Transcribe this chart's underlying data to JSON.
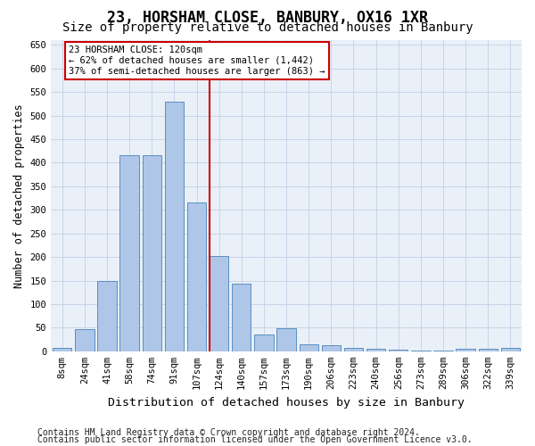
{
  "title": "23, HORSHAM CLOSE, BANBURY, OX16 1XR",
  "subtitle": "Size of property relative to detached houses in Banbury",
  "xlabel": "Distribution of detached houses by size in Banbury",
  "ylabel": "Number of detached properties",
  "footnote1": "Contains HM Land Registry data © Crown copyright and database right 2024.",
  "footnote2": "Contains public sector information licensed under the Open Government Licence v3.0.",
  "bar_labels": [
    "8sqm",
    "24sqm",
    "41sqm",
    "58sqm",
    "74sqm",
    "91sqm",
    "107sqm",
    "124sqm",
    "140sqm",
    "157sqm",
    "173sqm",
    "190sqm",
    "206sqm",
    "223sqm",
    "240sqm",
    "256sqm",
    "273sqm",
    "289sqm",
    "306sqm",
    "322sqm",
    "339sqm"
  ],
  "bar_values": [
    8,
    46,
    150,
    415,
    416,
    530,
    315,
    203,
    144,
    35,
    48,
    15,
    13,
    8,
    5,
    4,
    2,
    1,
    6,
    6,
    8
  ],
  "bar_color": "#aec6e8",
  "bar_edge_color": "#5a8fc2",
  "annotation_text1": "23 HORSHAM CLOSE: 120sqm",
  "annotation_text2": "← 62% of detached houses are smaller (1,442)",
  "annotation_text3": "37% of semi-detached houses are larger (863) →",
  "annotation_box_color": "#ffffff",
  "annotation_box_edge": "#cc0000",
  "line_color": "#cc0000",
  "line_bar_index": 7,
  "ylim": [
    0,
    660
  ],
  "yticks": [
    0,
    50,
    100,
    150,
    200,
    250,
    300,
    350,
    400,
    450,
    500,
    550,
    600,
    650
  ],
  "grid_color": "#c8d4e8",
  "background_color": "#eaf0f8",
  "title_fontsize": 12,
  "subtitle_fontsize": 10,
  "xlabel_fontsize": 9.5,
  "ylabel_fontsize": 8.5,
  "tick_fontsize": 7.5,
  "footnote_fontsize": 7
}
